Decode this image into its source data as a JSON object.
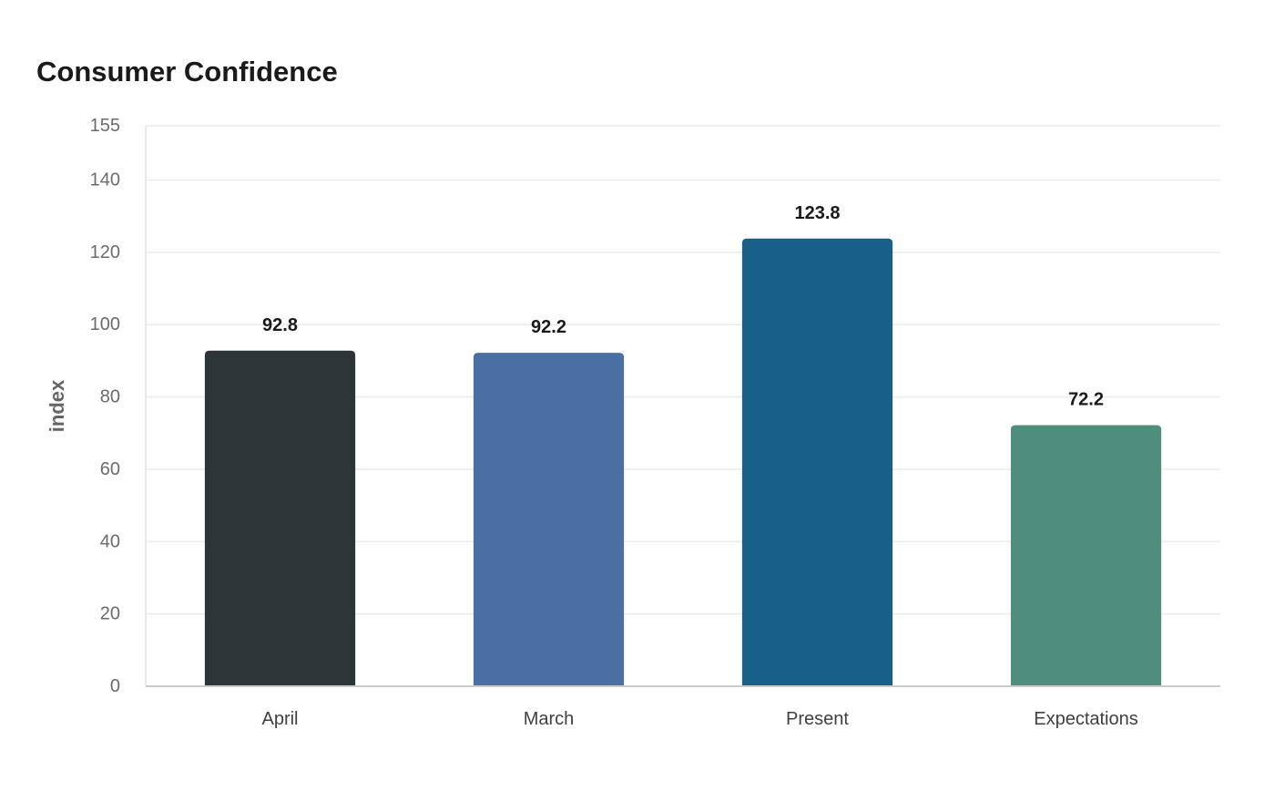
{
  "chart_data": {
    "type": "bar",
    "title": "Consumer Confidence",
    "xlabel": "",
    "ylabel": "index",
    "ylim": [
      0,
      155
    ],
    "yticks": [
      0,
      20,
      40,
      60,
      80,
      100,
      120,
      140,
      155
    ],
    "grid": true,
    "categories": [
      "April",
      "March",
      "Present",
      "Expectations"
    ],
    "values": [
      92.8,
      92.2,
      123.8,
      72.2
    ],
    "value_labels": [
      "92.8",
      "92.2",
      "123.8",
      "72.2"
    ],
    "colors": [
      "#2e3538",
      "#4a6fa3",
      "#186089",
      "#4f8e7c"
    ]
  }
}
